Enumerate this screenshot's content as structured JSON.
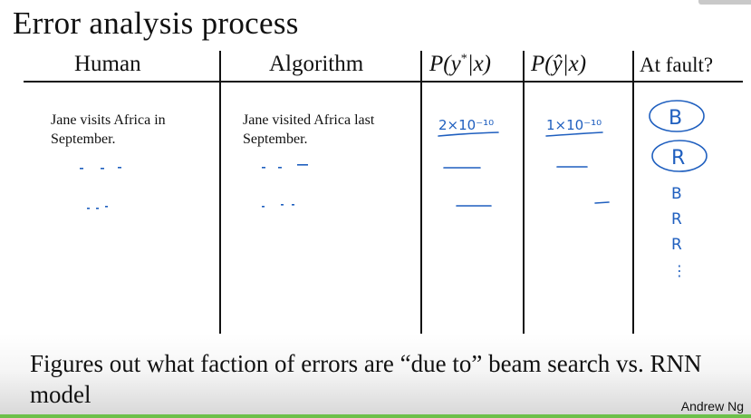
{
  "title": "Error analysis process",
  "table": {
    "headers": {
      "human": "Human",
      "algorithm": "Algorithm",
      "p_star_prefix": "P(y",
      "p_star_sup": "*",
      "p_star_suffix": "|x)",
      "p_hat_prefix": "P(",
      "p_hat_var": "ŷ",
      "p_hat_suffix": "|x)",
      "at_fault": "At fault?"
    },
    "row1": {
      "human": "Jane visits Africa in September.",
      "algorithm": "Jane visited Africa last September."
    },
    "handwriting": {
      "p_star_value": "2×10⁻¹⁰",
      "p_hat_value": "1×10⁻¹⁰",
      "fault_1": "B",
      "fault_2": "R",
      "fault_3": "B",
      "fault_4": "R",
      "fault_5": "R",
      "fault_more": "⋮"
    }
  },
  "footer": {
    "text": "Figures out what faction of errors are “due to” beam search vs. RNN model",
    "author": "Andrew Ng"
  },
  "colors": {
    "ink_blue": "#1f5fbf",
    "accent_green": "#6cc04a"
  }
}
